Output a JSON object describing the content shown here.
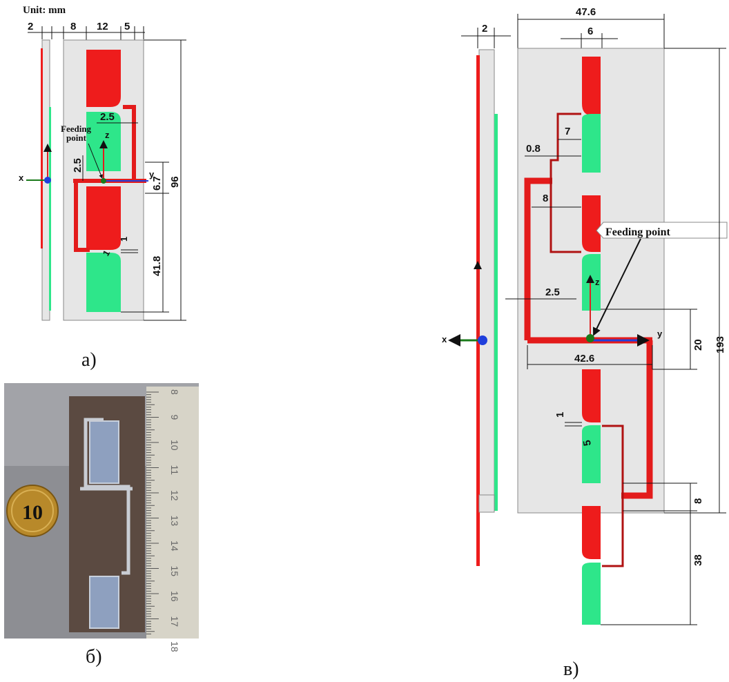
{
  "unit_label": "Unit: mm",
  "colors": {
    "red": "#ee1c1c",
    "green": "#2ee68a",
    "board": "#e6e6e6",
    "trace": "#e31b1b"
  },
  "panel_a": {
    "caption": "а)",
    "dims": {
      "d2": "2",
      "d8": "8",
      "d12": "12",
      "d5": "5",
      "d2_5_top": "2.5",
      "d2_5_left": "2.5",
      "d6_7": "6.7",
      "d96": "96",
      "d41_8": "41.8",
      "d1a": "1",
      "d1b": "1"
    },
    "feeding_label_1": "Feeding",
    "feeding_label_2": "point",
    "axis_z": "z",
    "axis_y": "y",
    "axis_x": "x"
  },
  "panel_b": {
    "caption": "б)",
    "ruler_numbers": [
      "8",
      "9",
      "10",
      "11",
      "12",
      "13",
      "14",
      "15",
      "16",
      "17",
      "18"
    ]
  },
  "panel_c": {
    "caption": "в)",
    "dims": {
      "d47_6": "47.6",
      "d2": "2",
      "d6": "6",
      "d7": "7",
      "d0_8": "0.8",
      "d8_top": "8",
      "d2_5": "2.5",
      "d20": "20",
      "d42_6": "42.6",
      "d193": "193",
      "d1": "1",
      "d5": "5",
      "d8_bottom": "8",
      "d38": "38"
    },
    "feeding_label": "Feeding point",
    "axis_z": "z",
    "axis_y": "y",
    "axis_x": "x"
  }
}
